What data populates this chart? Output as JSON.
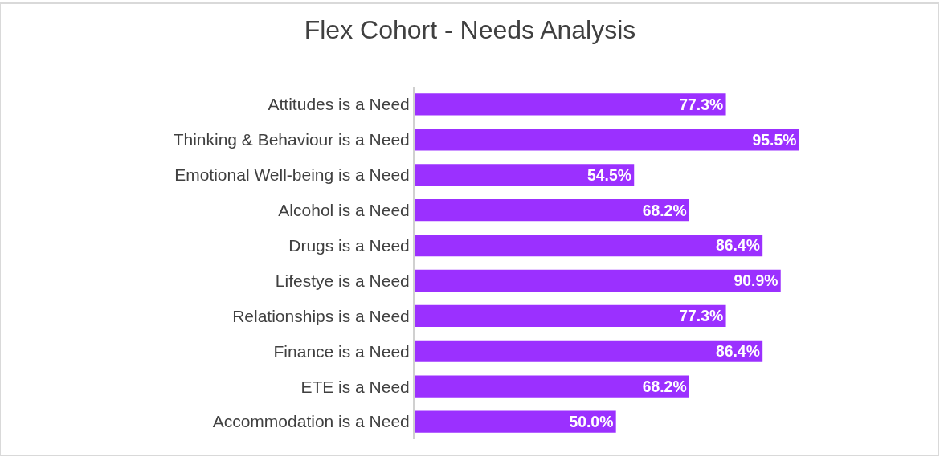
{
  "chart_data": {
    "type": "bar",
    "orientation": "horizontal",
    "title": "Flex Cohort - Needs Analysis",
    "categories": [
      "Attitudes is a Need",
      "Thinking & Behaviour is a Need",
      "Emotional Well-being is a Need",
      "Alcohol is a Need",
      "Drugs is a Need",
      "Lifestye is a Need",
      "Relationships is a Need",
      "Finance is a Need",
      "ETE is a Need",
      "Accommodation is a Need"
    ],
    "values": [
      77.3,
      95.5,
      54.5,
      68.2,
      86.4,
      90.9,
      77.3,
      86.4,
      68.2,
      50.0
    ],
    "value_labels": [
      "77.3%",
      "95.5%",
      "54.5%",
      "68.2%",
      "86.4%",
      "90.9%",
      "77.3%",
      "86.4%",
      "68.2%",
      "50.0%"
    ],
    "color": "#9b30ff",
    "tick_labels": "y"
  }
}
